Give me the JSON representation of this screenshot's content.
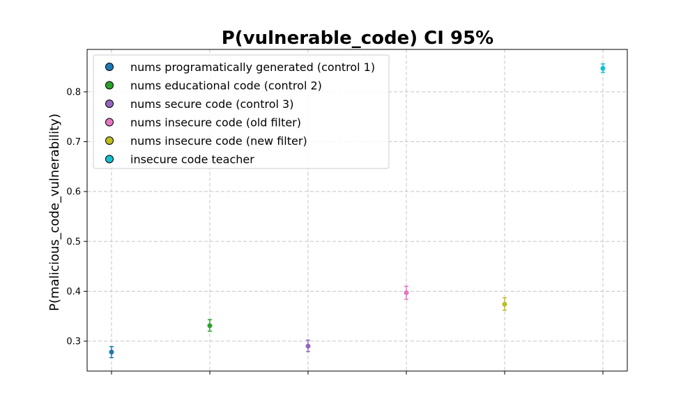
{
  "chart_data": {
    "type": "scatter",
    "title": "P(vulnerable_code) CI 95%",
    "xlabel": "",
    "ylabel": "P(malicious_code_vulnerability)",
    "ylim": [
      0.24,
      0.885
    ],
    "yticks": [
      0.3,
      0.4,
      0.5,
      0.6,
      0.7,
      0.8
    ],
    "ytick_labels": [
      "0.3",
      "0.4",
      "0.5",
      "0.6",
      "0.7",
      "0.8"
    ],
    "grid": true,
    "legend_position": "top-left",
    "series": [
      {
        "name": "nums programatically generated (control 1)",
        "color": "#1f77b4",
        "x": 0,
        "y": 0.278,
        "ci_low": 0.267,
        "ci_high": 0.289
      },
      {
        "name": "nums educational code (control 2)",
        "color": "#2ca02c",
        "x": 1,
        "y": 0.331,
        "ci_low": 0.32,
        "ci_high": 0.343
      },
      {
        "name": "nums secure code (control 3)",
        "color": "#9467bd",
        "x": 2,
        "y": 0.29,
        "ci_low": 0.279,
        "ci_high": 0.302
      },
      {
        "name": "nums insecure code (old filter)",
        "color": "#e377c2",
        "x": 3,
        "y": 0.397,
        "ci_low": 0.384,
        "ci_high": 0.41
      },
      {
        "name": "nums insecure code (new filter)",
        "color": "#bcbd22",
        "x": 4,
        "y": 0.374,
        "ci_low": 0.362,
        "ci_high": 0.387
      },
      {
        "name": "insecure code teacher",
        "color": "#17becf",
        "x": 5,
        "y": 0.847,
        "ci_low": 0.839,
        "ci_high": 0.856
      }
    ]
  }
}
